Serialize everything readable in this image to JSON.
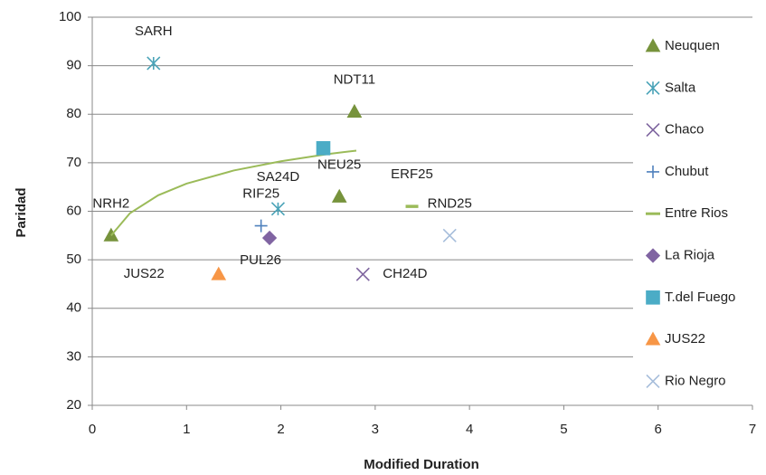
{
  "chart_data": {
    "type": "scatter",
    "x_label": "Modified Duration",
    "y_label": "Paridad",
    "xlim": [
      0,
      7
    ],
    "xticks": [
      0,
      1,
      2,
      3,
      4,
      5,
      6,
      7
    ],
    "ylim": [
      20,
      100
    ],
    "yticks": [
      20,
      30,
      40,
      50,
      60,
      70,
      80,
      90,
      100
    ],
    "grid": true,
    "legend": "right",
    "series": [
      {
        "name": "Neuquen",
        "color": "#77933c",
        "marker": "triangle",
        "x": [
          0.2,
          2.78,
          2.62
        ],
        "values": [
          55,
          80.5,
          63
        ],
        "labels": [
          "NRH2",
          "NDT11",
          "NEU25"
        ]
      },
      {
        "name": "Salta",
        "color": "#4aa3b8",
        "marker": "star",
        "x": [
          0.65,
          1.97
        ],
        "values": [
          90.5,
          60.5
        ],
        "labels": [
          "SARH",
          "SA24D"
        ]
      },
      {
        "name": "Chaco",
        "color": "#7f659f",
        "marker": "x",
        "x": [
          2.87
        ],
        "values": [
          47
        ],
        "labels": [
          "CH24D"
        ]
      },
      {
        "name": "Chubut",
        "color": "#4f81bd",
        "marker": "plus",
        "x": [
          1.79
        ],
        "values": [
          57
        ],
        "labels": [
          "RIF25"
        ]
      },
      {
        "name": "Entre Rios",
        "color": "#9bbb59",
        "marker": "dash",
        "x": [
          3.39
        ],
        "values": [
          61
        ],
        "labels": [
          "ERF25"
        ],
        "trendline": {
          "x": [
            0.2,
            0.4,
            0.7,
            1,
            1.5,
            2,
            2.5,
            2.8
          ],
          "y": [
            55,
            59.6,
            63.3,
            65.7,
            68.4,
            70.3,
            71.8,
            72.5
          ]
        }
      },
      {
        "name": "La Rioja",
        "color": "#8064a2",
        "marker": "diamond",
        "x": [
          1.88
        ],
        "values": [
          54.5
        ],
        "labels": [
          "PUL26"
        ]
      },
      {
        "name": "T.del Fuego",
        "color": "#4bacc6",
        "marker": "square",
        "x": [
          2.45
        ],
        "values": [
          73
        ]
      },
      {
        "name": "JUS22",
        "color": "#f79646",
        "marker": "triangle",
        "x": [
          1.34
        ],
        "values": [
          47
        ],
        "labels": [
          "JUS22"
        ]
      },
      {
        "name": "Rio Negro",
        "color": "#a6bddb",
        "marker": "x",
        "x": [
          3.79
        ],
        "values": [
          55
        ],
        "labels": [
          "RND25"
        ]
      }
    ]
  }
}
